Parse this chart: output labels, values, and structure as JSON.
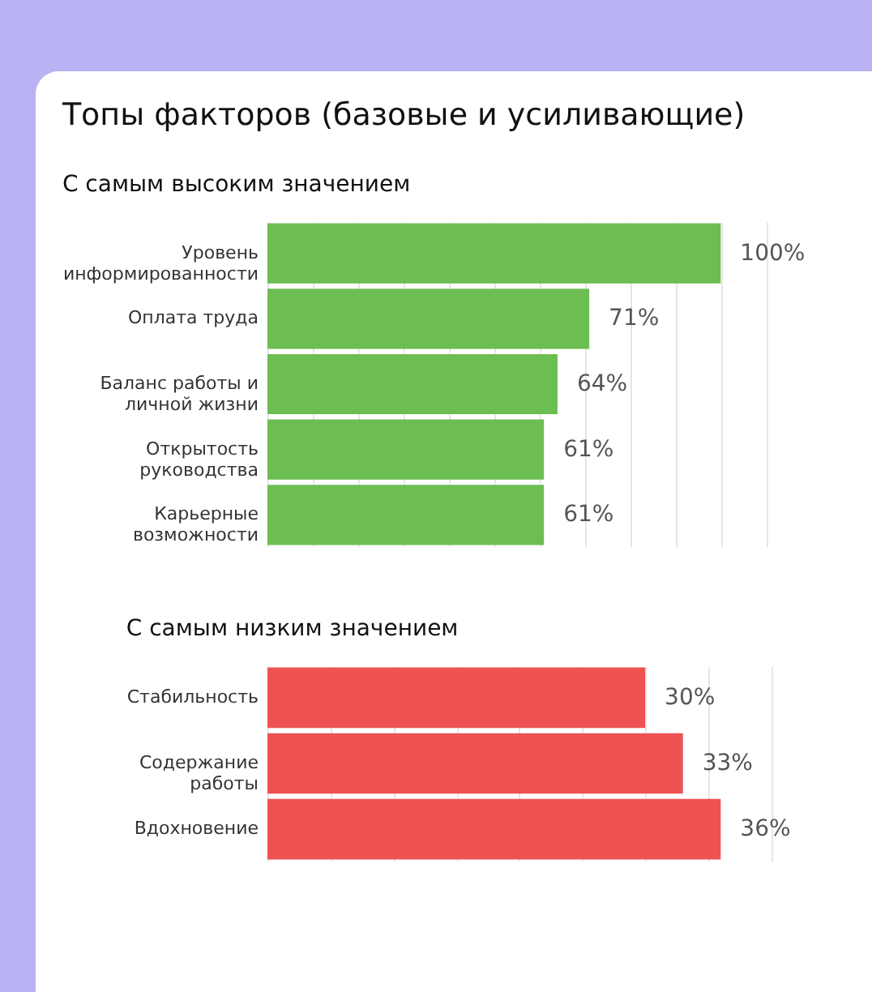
{
  "chart_data": [
    {
      "type": "bar",
      "orientation": "horizontal",
      "title": "Топы факторов (базовые и усиливающие)",
      "subtitle": "С самым высоким значением",
      "categories": [
        "Уровень информированности",
        "Оплата труда",
        "Баланс работы и личной жизни",
        "Открытость руководства",
        "Карьерные возможности"
      ],
      "values": [
        100,
        71,
        64,
        61,
        61
      ],
      "value_labels": [
        "100%",
        "71%",
        "64%",
        "61%",
        "61%"
      ],
      "color": "#6cbd52"
    },
    {
      "type": "bar",
      "orientation": "horizontal",
      "title": "С самым низким значением",
      "categories": [
        "Стабильность",
        "Содержание работы",
        "Вдохновение"
      ],
      "values": [
        30,
        33,
        36
      ],
      "value_labels": [
        "30%",
        "33%",
        "36%"
      ],
      "color": "#ee5252"
    }
  ]
}
